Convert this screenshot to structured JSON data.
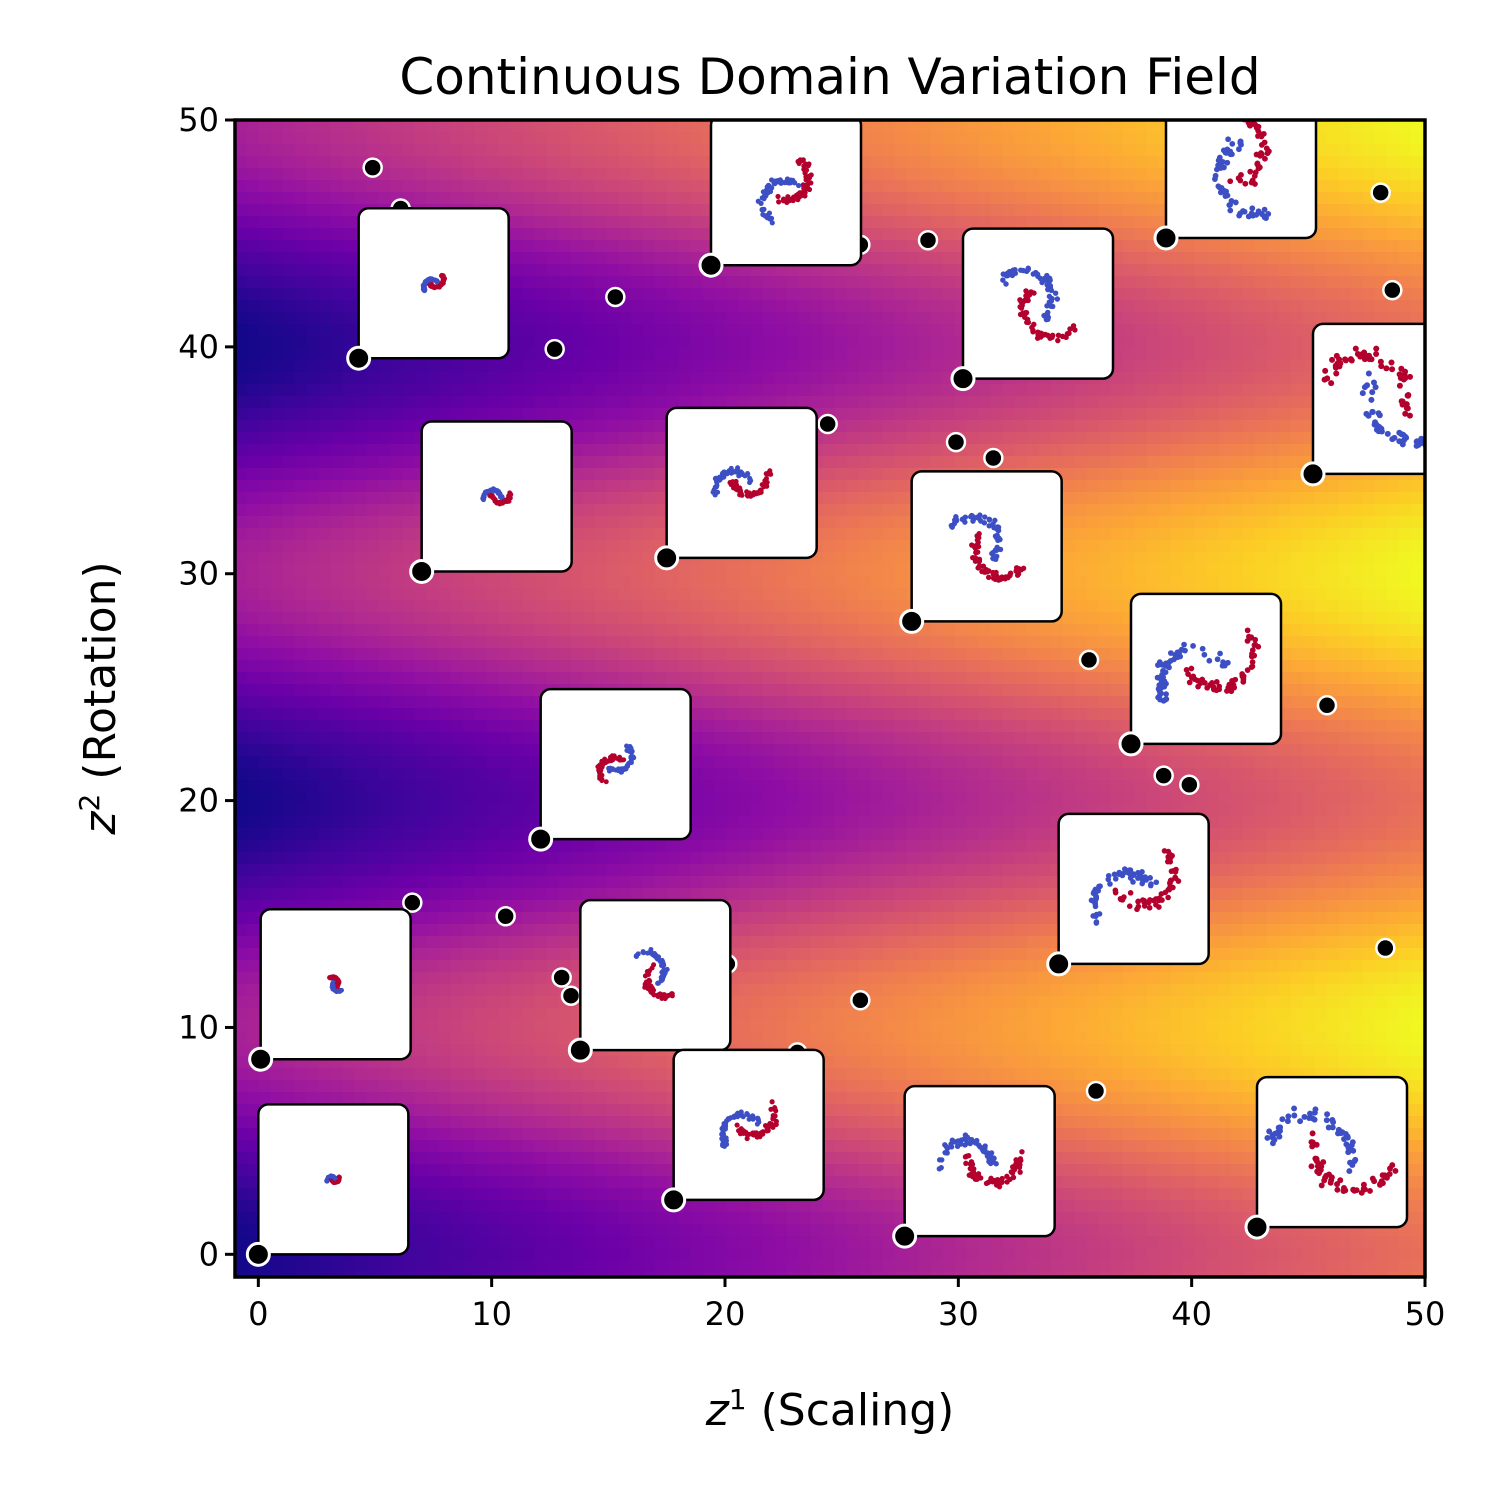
{
  "chart_data": {
    "type": "scatter",
    "title": "Continuous Domain Variation Field",
    "xlabel_var": "z",
    "xlabel_sup": "1",
    "xlabel_rest": " (Scaling)",
    "ylabel_var": "z",
    "ylabel_sup": "2",
    "ylabel_rest": " (Rotation)",
    "xlim": [
      -1,
      50
    ],
    "ylim": [
      -1,
      50
    ],
    "xticks": [
      0,
      10,
      20,
      30,
      40,
      50
    ],
    "yticks": [
      0,
      10,
      20,
      30,
      40,
      50
    ],
    "xtick_labels": [
      "0",
      "10",
      "20",
      "30",
      "40",
      "50"
    ],
    "ytick_labels": [
      "0",
      "10",
      "20",
      "30",
      "40",
      "50"
    ],
    "grid": false,
    "background_colormap": "plasma",
    "series_colors": {
      "class_a": "#3d4fc4",
      "class_b": "#b3002d"
    },
    "small_points": [
      [
        4.9,
        47.9
      ],
      [
        6.1,
        46.1
      ],
      [
        25.8,
        44.5
      ],
      [
        28.7,
        44.7
      ],
      [
        15.3,
        42.2
      ],
      [
        12.7,
        39.9
      ],
      [
        24.4,
        36.6
      ],
      [
        29.9,
        35.8
      ],
      [
        31.5,
        35.1
      ],
      [
        35.6,
        26.2
      ],
      [
        45.8,
        24.2
      ],
      [
        38.8,
        21.1
      ],
      [
        39.9,
        20.7
      ],
      [
        6.6,
        15.5
      ],
      [
        10.6,
        14.9
      ],
      [
        13.0,
        12.2
      ],
      [
        13.4,
        11.4
      ],
      [
        20.1,
        12.8
      ],
      [
        25.8,
        11.2
      ],
      [
        23.1,
        8.9
      ],
      [
        35.9,
        7.2
      ],
      [
        48.3,
        13.5
      ],
      [
        48.1,
        46.8
      ],
      [
        48.6,
        42.5
      ]
    ],
    "anchors": [
      {
        "x": 0.0,
        "y": 0.0,
        "s": 0.1,
        "r": 0.2
      },
      {
        "x": 0.1,
        "y": 8.6,
        "s": 0.13,
        "r": 2.2
      },
      {
        "x": 4.3,
        "y": 39.5,
        "s": 0.18,
        "r": 0.6
      },
      {
        "x": 7.0,
        "y": 30.1,
        "s": 0.21,
        "r": 0.1
      },
      {
        "x": 12.1,
        "y": 18.3,
        "s": 0.33,
        "r": 4.0
      },
      {
        "x": 13.8,
        "y": 9.0,
        "s": 0.4,
        "r": 5.3
      },
      {
        "x": 17.5,
        "y": 30.7,
        "s": 0.43,
        "r": 0.3
      },
      {
        "x": 17.8,
        "y": 2.4,
        "s": 0.47,
        "r": 0.6
      },
      {
        "x": 19.4,
        "y": 43.6,
        "s": 0.5,
        "r": 1.0
      },
      {
        "x": 27.7,
        "y": 0.8,
        "s": 0.62,
        "r": 0.0
      },
      {
        "x": 28.0,
        "y": 27.9,
        "s": 0.62,
        "r": 5.6
      },
      {
        "x": 30.2,
        "y": 38.6,
        "s": 0.66,
        "r": 5.5
      },
      {
        "x": 34.3,
        "y": 12.8,
        "s": 0.75,
        "r": 0.7
      },
      {
        "x": 37.4,
        "y": 22.5,
        "s": 0.82,
        "r": 0.5
      },
      {
        "x": 38.9,
        "y": 44.8,
        "s": 0.86,
        "r": 1.9
      },
      {
        "x": 42.8,
        "y": 1.2,
        "s": 0.95,
        "r": 6.0
      },
      {
        "x": 45.2,
        "y": 34.4,
        "s": 1.0,
        "r": 2.7
      }
    ]
  }
}
